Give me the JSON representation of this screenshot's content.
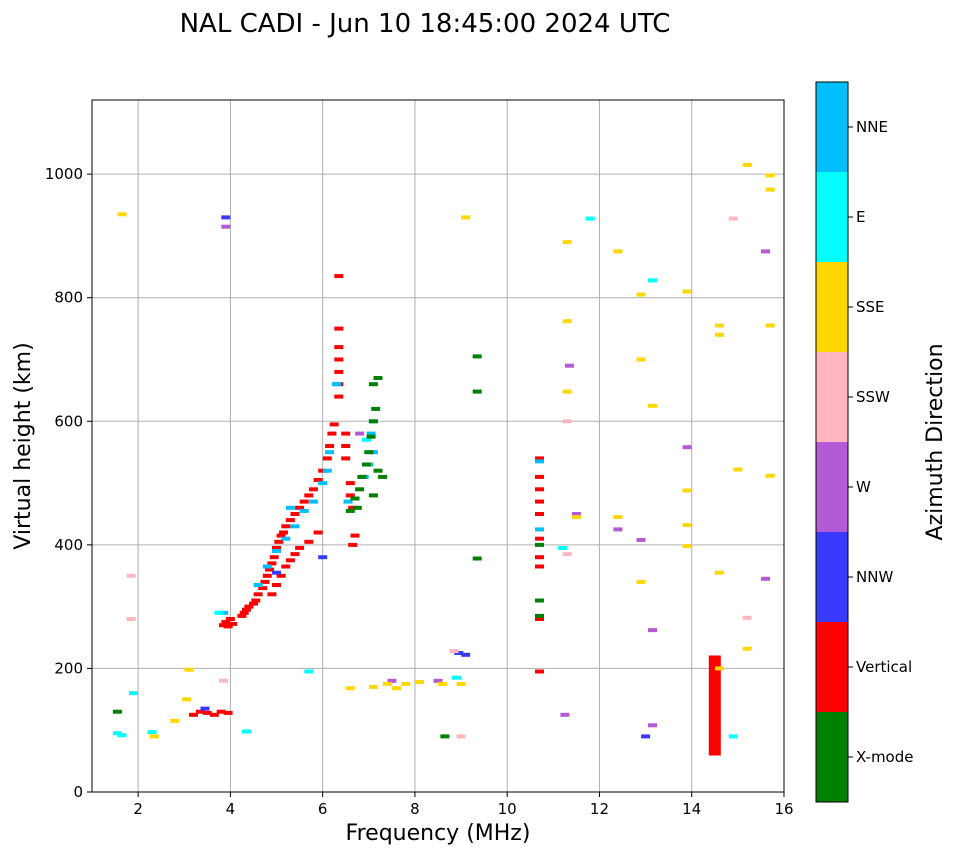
{
  "chart_data": {
    "type": "scatter",
    "title": "NAL CADI - Jun 10 18:45:00 2024 UTC",
    "xlabel": "Frequency (MHz)",
    "ylabel": "Virtual height (km)",
    "xlim": [
      1,
      16
    ],
    "ylim": [
      0,
      1120
    ],
    "xticks": [
      2,
      4,
      6,
      8,
      10,
      12,
      14,
      16
    ],
    "yticks": [
      0,
      200,
      400,
      600,
      800,
      1000
    ],
    "grid": true,
    "colorbar": {
      "label": "Azimuth Direction",
      "categories": [
        {
          "name": "X-mode",
          "color": "#008000"
        },
        {
          "name": "Vertical",
          "color": "#ff0000"
        },
        {
          "name": "NNW",
          "color": "#3a3aff"
        },
        {
          "name": "W",
          "color": "#b45ad6"
        },
        {
          "name": "SSW",
          "color": "#ffb6c1"
        },
        {
          "name": "SSE",
          "color": "#ffd700"
        },
        {
          "name": "E",
          "color": "#00ffff"
        },
        {
          "name": "NNE",
          "color": "#00bfff"
        }
      ]
    },
    "series": [
      {
        "name": "Vertical",
        "color": "#ff0000",
        "points": [
          [
            3.85,
            270
          ],
          [
            3.9,
            275
          ],
          [
            3.95,
            268
          ],
          [
            4.0,
            280
          ],
          [
            4.05,
            272
          ],
          [
            4.25,
            285
          ],
          [
            4.3,
            290
          ],
          [
            4.35,
            295
          ],
          [
            4.4,
            300
          ],
          [
            4.5,
            305
          ],
          [
            4.55,
            310
          ],
          [
            4.6,
            320
          ],
          [
            4.7,
            330
          ],
          [
            4.75,
            340
          ],
          [
            4.8,
            350
          ],
          [
            4.85,
            360
          ],
          [
            4.9,
            370
          ],
          [
            4.95,
            380
          ],
          [
            5.0,
            395
          ],
          [
            5.05,
            405
          ],
          [
            5.1,
            415
          ],
          [
            5.15,
            420
          ],
          [
            5.2,
            430
          ],
          [
            5.3,
            440
          ],
          [
            5.4,
            450
          ],
          [
            5.5,
            460
          ],
          [
            5.6,
            470
          ],
          [
            5.7,
            480
          ],
          [
            5.8,
            490
          ],
          [
            5.9,
            505
          ],
          [
            6.0,
            520
          ],
          [
            6.1,
            540
          ],
          [
            6.15,
            560
          ],
          [
            6.2,
            580
          ],
          [
            6.25,
            595
          ],
          [
            4.9,
            320
          ],
          [
            5.0,
            335
          ],
          [
            5.1,
            350
          ],
          [
            5.2,
            365
          ],
          [
            5.3,
            375
          ],
          [
            5.4,
            385
          ],
          [
            5.5,
            395
          ],
          [
            5.7,
            405
          ],
          [
            5.9,
            420
          ],
          [
            3.2,
            125
          ],
          [
            3.35,
            130
          ],
          [
            3.5,
            128
          ],
          [
            3.65,
            125
          ],
          [
            3.8,
            130
          ],
          [
            3.95,
            128
          ],
          [
            6.35,
            835
          ],
          [
            6.35,
            750
          ],
          [
            6.35,
            720
          ],
          [
            6.35,
            700
          ],
          [
            6.35,
            680
          ],
          [
            6.35,
            660
          ],
          [
            6.35,
            640
          ],
          [
            6.5,
            580
          ],
          [
            6.5,
            560
          ],
          [
            6.5,
            540
          ],
          [
            6.6,
            500
          ],
          [
            6.6,
            480
          ],
          [
            6.65,
            460
          ],
          [
            6.7,
            415
          ],
          [
            6.65,
            400
          ],
          [
            10.7,
            540
          ],
          [
            10.7,
            510
          ],
          [
            10.7,
            490
          ],
          [
            10.7,
            470
          ],
          [
            10.7,
            450
          ],
          [
            10.7,
            410
          ],
          [
            10.7,
            380
          ],
          [
            10.7,
            365
          ],
          [
            10.7,
            280
          ],
          [
            10.7,
            195
          ],
          [
            14.5,
            140
          ]
        ]
      },
      {
        "name": "NNE",
        "color": "#00bfff",
        "points": [
          [
            4.6,
            335
          ],
          [
            4.8,
            365
          ],
          [
            5.0,
            390
          ],
          [
            5.2,
            410
          ],
          [
            5.4,
            430
          ],
          [
            5.6,
            455
          ],
          [
            5.8,
            470
          ],
          [
            6.0,
            500
          ],
          [
            6.1,
            520
          ],
          [
            6.15,
            550
          ],
          [
            6.3,
            660
          ],
          [
            6.55,
            470
          ],
          [
            6.9,
            510
          ],
          [
            7.0,
            530
          ],
          [
            7.1,
            550
          ],
          [
            7.05,
            580
          ],
          [
            10.7,
            425
          ],
          [
            10.7,
            535
          ],
          [
            3.85,
            290
          ],
          [
            5.3,
            460
          ]
        ]
      },
      {
        "name": "E",
        "color": "#00ffff",
        "points": [
          [
            1.55,
            95
          ],
          [
            1.65,
            92
          ],
          [
            2.3,
            97
          ],
          [
            3.75,
            290
          ],
          [
            5.7,
            195
          ],
          [
            8.9,
            185
          ],
          [
            6.95,
            570
          ],
          [
            7.1,
            600
          ],
          [
            11.2,
            395
          ],
          [
            11.8,
            928
          ],
          [
            13.15,
            828
          ],
          [
            14.9,
            90
          ],
          [
            4.35,
            98
          ],
          [
            1.9,
            160
          ]
        ]
      },
      {
        "name": "X-mode",
        "color": "#008000",
        "points": [
          [
            6.6,
            455
          ],
          [
            6.7,
            475
          ],
          [
            6.8,
            490
          ],
          [
            6.85,
            510
          ],
          [
            6.95,
            530
          ],
          [
            7.0,
            550
          ],
          [
            7.05,
            575
          ],
          [
            7.1,
            600
          ],
          [
            7.15,
            620
          ],
          [
            7.1,
            660
          ],
          [
            7.2,
            670
          ],
          [
            7.2,
            520
          ],
          [
            7.3,
            510
          ],
          [
            7.1,
            480
          ],
          [
            6.75,
            460
          ],
          [
            10.7,
            400
          ],
          [
            10.7,
            310
          ],
          [
            10.7,
            285
          ],
          [
            9.35,
            705
          ],
          [
            9.35,
            648
          ],
          [
            9.35,
            378
          ],
          [
            8.65,
            90
          ],
          [
            1.55,
            130
          ]
        ]
      },
      {
        "name": "NNW",
        "color": "#3a3aff",
        "points": [
          [
            3.45,
            135
          ],
          [
            3.9,
            930
          ],
          [
            5.0,
            355
          ],
          [
            6.0,
            380
          ],
          [
            8.95,
            225
          ],
          [
            9.1,
            222
          ],
          [
            13.0,
            90
          ]
        ]
      },
      {
        "name": "W",
        "color": "#b45ad6",
        "points": [
          [
            3.9,
            915
          ],
          [
            7.5,
            180
          ],
          [
            8.5,
            180
          ],
          [
            11.35,
            690
          ],
          [
            11.5,
            450
          ],
          [
            12.4,
            425
          ],
          [
            12.9,
            408
          ],
          [
            13.15,
            262
          ],
          [
            13.15,
            108
          ],
          [
            13.9,
            558
          ],
          [
            15.6,
            345
          ],
          [
            15.6,
            875
          ],
          [
            6.8,
            580
          ],
          [
            11.25,
            125
          ]
        ]
      },
      {
        "name": "SSW",
        "color": "#ffb6c1",
        "points": [
          [
            8.85,
            228
          ],
          [
            9.0,
            90
          ],
          [
            11.3,
            600
          ],
          [
            11.3,
            385
          ],
          [
            14.9,
            928
          ],
          [
            15.2,
            282
          ],
          [
            1.85,
            350
          ],
          [
            1.85,
            280
          ],
          [
            3.85,
            180
          ]
        ]
      },
      {
        "name": "SSE",
        "color": "#ffd700",
        "points": [
          [
            6.6,
            168
          ],
          [
            7.1,
            170
          ],
          [
            7.4,
            175
          ],
          [
            7.6,
            168
          ],
          [
            7.8,
            175
          ],
          [
            8.1,
            178
          ],
          [
            8.6,
            175
          ],
          [
            9.0,
            175
          ],
          [
            2.35,
            90
          ],
          [
            2.8,
            115
          ],
          [
            3.1,
            198
          ],
          [
            3.05,
            150
          ],
          [
            1.65,
            935
          ],
          [
            9.1,
            930
          ],
          [
            11.3,
            890
          ],
          [
            11.3,
            762
          ],
          [
            11.3,
            648
          ],
          [
            11.5,
            445
          ],
          [
            12.4,
            875
          ],
          [
            12.4,
            445
          ],
          [
            12.9,
            805
          ],
          [
            12.9,
            700
          ],
          [
            12.9,
            340
          ],
          [
            13.15,
            625
          ],
          [
            13.9,
            810
          ],
          [
            13.9,
            488
          ],
          [
            13.9,
            432
          ],
          [
            13.9,
            398
          ],
          [
            14.6,
            755
          ],
          [
            14.6,
            740
          ],
          [
            14.6,
            355
          ],
          [
            14.6,
            200
          ],
          [
            15.0,
            522
          ],
          [
            15.2,
            1015
          ],
          [
            15.2,
            232
          ],
          [
            15.7,
            998
          ],
          [
            15.7,
            975
          ],
          [
            15.7,
            755
          ],
          [
            15.7,
            512
          ]
        ]
      }
    ]
  }
}
